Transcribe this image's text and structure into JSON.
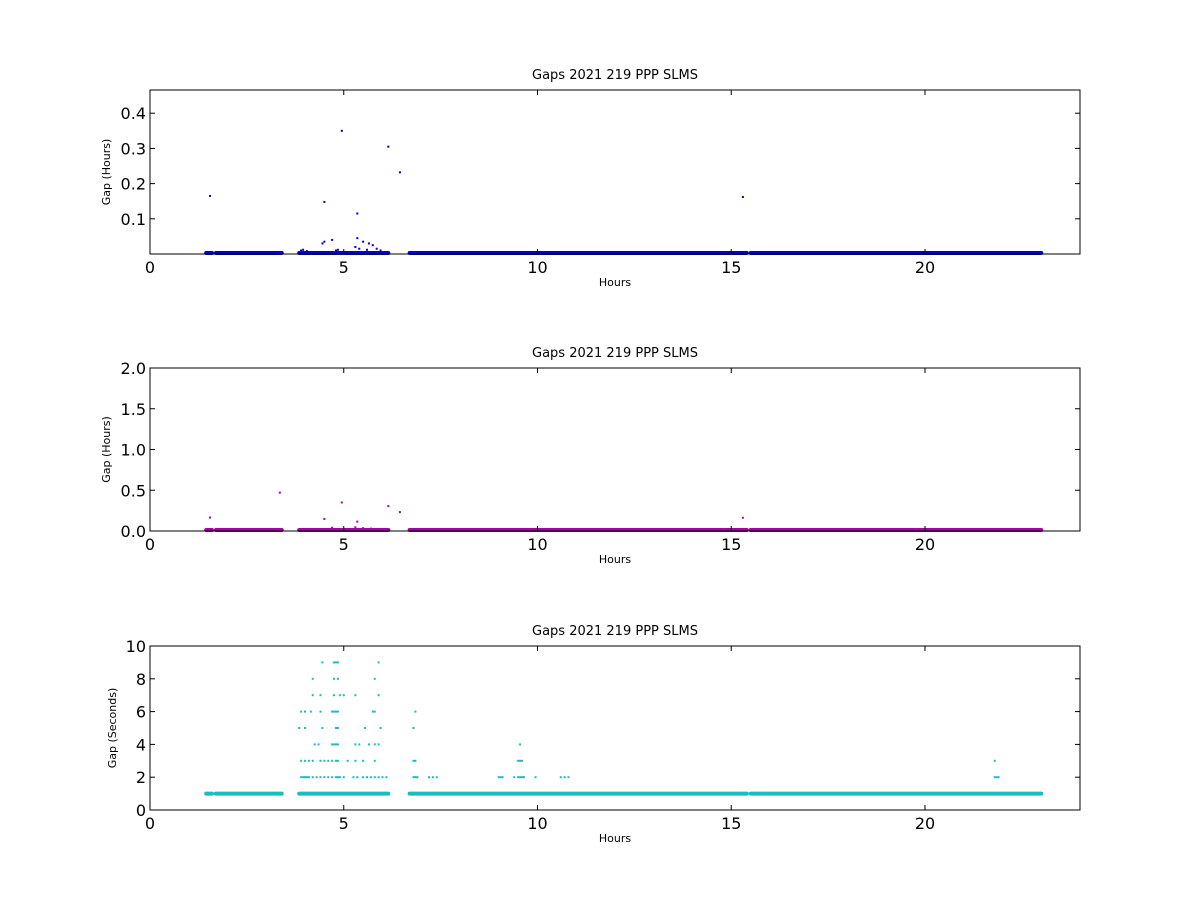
{
  "chart_data": [
    {
      "type": "scatter",
      "title": "Gaps 2021 219 PPP  SLMS",
      "xlabel": "Hours",
      "ylabel": "Gap (Hours)",
      "xlim": [
        0,
        24
      ],
      "ylim": [
        0,
        0.466
      ],
      "xticks": [
        0,
        5,
        10,
        15,
        20
      ],
      "xtick_labels": [
        "0",
        "5",
        "10",
        "15",
        "20"
      ],
      "yticks": [
        0.1,
        0.2,
        0.3,
        0.4
      ],
      "ytick_labels": [
        "0.1",
        "0.2",
        "0.3",
        "0.4"
      ],
      "grid": false,
      "color": "#0000cc",
      "series": [
        {
          "band_segments": [
            [
              1.45,
              1.6
            ],
            [
              1.7,
              3.4
            ],
            [
              3.85,
              6.15
            ],
            [
              6.7,
              15.4
            ],
            [
              15.5,
              23.0
            ]
          ],
          "band_y": 0.0005,
          "x": [
            1.55,
            4.5,
            4.95,
            5.35,
            6.15,
            6.45,
            15.3,
            3.9,
            3.95,
            4.45,
            4.5,
            4.7,
            4.85,
            5.3,
            5.35,
            5.5,
            5.65,
            5.75,
            5.85,
            5.95,
            5.4,
            5.6,
            4.05,
            4.8
          ],
          "y": [
            0.165,
            0.148,
            0.35,
            0.115,
            0.305,
            0.232,
            0.162,
            0.01,
            0.012,
            0.03,
            0.035,
            0.04,
            0.012,
            0.02,
            0.045,
            0.035,
            0.03,
            0.025,
            0.015,
            0.01,
            0.015,
            0.012,
            0.008,
            0.01
          ]
        }
      ]
    },
    {
      "type": "scatter",
      "title": "Gaps 2021 219 PPP  SLMS",
      "xlabel": "Hours",
      "ylabel": "Gap (Hours)",
      "xlim": [
        0,
        24
      ],
      "ylim": [
        0,
        2.0
      ],
      "xticks": [
        0,
        5,
        10,
        15,
        20
      ],
      "xtick_labels": [
        "0",
        "5",
        "10",
        "15",
        "20"
      ],
      "yticks": [
        0,
        0.5,
        1.0,
        1.5,
        2.0
      ],
      "ytick_labels": [
        "0.0",
        "0.5",
        "1.0",
        "1.5",
        "2.0"
      ],
      "grid": false,
      "color": "#aa00aa",
      "series": [
        {
          "band_segments": [
            [
              1.45,
              1.6
            ],
            [
              1.7,
              3.4
            ],
            [
              3.85,
              6.15
            ],
            [
              6.7,
              15.4
            ],
            [
              15.5,
              23.0
            ]
          ],
          "band_y": 0.003,
          "x": [
            1.55,
            3.35,
            4.5,
            4.95,
            5.35,
            6.15,
            6.45,
            15.3,
            4.7,
            5.3,
            5.5,
            5.7,
            5.9
          ],
          "y": [
            0.165,
            0.47,
            0.148,
            0.35,
            0.115,
            0.305,
            0.232,
            0.162,
            0.04,
            0.045,
            0.035,
            0.03,
            0.02
          ]
        }
      ]
    },
    {
      "type": "scatter",
      "title": "Gaps 2021 219 PPP  SLMS",
      "xlabel": "Hours",
      "ylabel": "Gap (Seconds)",
      "xlim": [
        0,
        24
      ],
      "ylim": [
        0,
        10
      ],
      "xticks": [
        0,
        5,
        10,
        15,
        20
      ],
      "xtick_labels": [
        "0",
        "5",
        "10",
        "15",
        "20"
      ],
      "yticks": [
        0,
        2,
        4,
        6,
        8,
        10
      ],
      "ytick_labels": [
        "0",
        "2",
        "4",
        "6",
        "8",
        "10"
      ],
      "grid": false,
      "color": "#17bebe",
      "series": [
        {
          "band_segments": [
            [
              1.45,
              1.6
            ],
            [
              1.7,
              3.4
            ],
            [
              3.85,
              6.15
            ],
            [
              6.7,
              15.4
            ],
            [
              15.5,
              23.0
            ]
          ],
          "band_y": 1,
          "x": [
            4.45,
            4.75,
            4.8,
            4.85,
            5.9,
            4.2,
            4.75,
            4.85,
            5.8,
            4.2,
            4.4,
            4.75,
            4.9,
            5.0,
            5.3,
            5.9,
            3.9,
            4.0,
            4.15,
            4.4,
            4.7,
            4.75,
            4.8,
            4.85,
            5.75,
            5.8,
            6.85,
            3.85,
            4.0,
            4.45,
            4.8,
            4.85,
            5.55,
            5.95,
            6.8,
            4.25,
            4.35,
            4.7,
            4.75,
            4.8,
            4.85,
            5.3,
            5.4,
            5.65,
            5.8,
            5.9,
            3.9,
            4.0,
            4.1,
            4.2,
            4.4,
            4.5,
            4.6,
            4.7,
            4.8,
            4.85,
            5.1,
            5.3,
            5.5,
            5.8,
            6.8,
            6.85,
            9.5,
            9.55,
            9.6,
            3.9,
            3.95,
            4.0,
            4.05,
            4.1,
            4.2,
            4.3,
            4.4,
            4.5,
            4.6,
            4.7,
            4.8,
            4.85,
            4.9,
            5.0,
            5.25,
            5.35,
            5.5,
            5.6,
            5.7,
            5.8,
            5.9,
            6.0,
            6.1,
            6.8,
            6.85,
            6.9,
            7.2,
            7.3,
            7.4,
            9.0,
            9.05,
            9.1,
            9.4,
            9.5,
            9.55,
            9.6,
            9.65,
            9.95,
            10.6,
            10.7,
            10.8,
            21.8,
            21.85,
            21.9,
            9.55,
            21.8
          ],
          "y": [
            9,
            9,
            9,
            9,
            9,
            8,
            8,
            8,
            8,
            7,
            7,
            7,
            7,
            7,
            7,
            7,
            6,
            6,
            6,
            6,
            6,
            6,
            6,
            6,
            6,
            6,
            6,
            5,
            5,
            5,
            5,
            5,
            5,
            5,
            5,
            4,
            4,
            4,
            4,
            4,
            4,
            4,
            4,
            4,
            4,
            4,
            3,
            3,
            3,
            3,
            3,
            3,
            3,
            3,
            3,
            3,
            3,
            3,
            3,
            3,
            3,
            3,
            3,
            3,
            3,
            2,
            2,
            2,
            2,
            2,
            2,
            2,
            2,
            2,
            2,
            2,
            2,
            2,
            2,
            2,
            2,
            2,
            2,
            2,
            2,
            2,
            2,
            2,
            2,
            2,
            2,
            2,
            2,
            2,
            2,
            2,
            2,
            2,
            2,
            2,
            2,
            2,
            2,
            2,
            2,
            2,
            2,
            2,
            2,
            2,
            4,
            3
          ]
        }
      ]
    }
  ]
}
